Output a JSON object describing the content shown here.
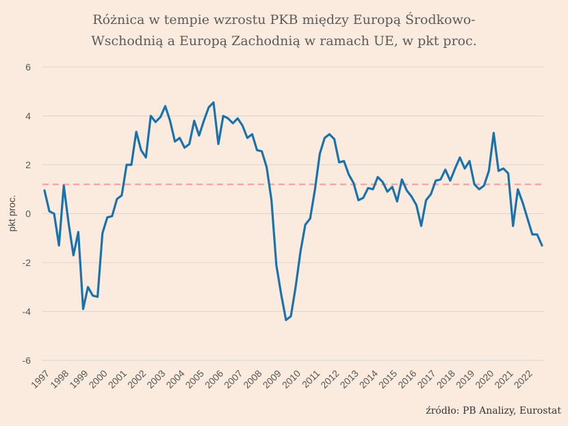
{
  "chart_data": {
    "type": "line",
    "title_line1": "Różnica w tempie wzrostu PKB między Europą Środkowo-",
    "title_line2": "Wschodnią a Europą Zachodnią w ramach UE, w pkt proc.",
    "ylabel": "pkt proc.",
    "source": "źródło: PB Analizy, Eurostat",
    "ylim": [
      -6,
      6
    ],
    "y_ticks": [
      "6",
      "4",
      "2",
      "0",
      "-2",
      "-4",
      "-6"
    ],
    "x_ticks": [
      "1997",
      "1998",
      "1999",
      "2000",
      "2001",
      "2002",
      "2003",
      "2004",
      "2005",
      "2006",
      "2007",
      "2008",
      "2009",
      "2010",
      "2011",
      "2012",
      "2013",
      "2014",
      "2015",
      "2016",
      "2017",
      "2018",
      "2019",
      "2020",
      "2021",
      "2022"
    ],
    "reference_line": 1.2,
    "grid": true,
    "colors": {
      "line": "#1a72ad",
      "reference": "#f2a0a0",
      "grid": "#d8d4d0"
    },
    "series": [
      {
        "start": "1997-Q1",
        "values": [
          0.95,
          0.1,
          0.0,
          -1.3,
          1.15,
          -0.4,
          -1.7,
          -0.75,
          -3.9,
          -3.0,
          -3.35,
          -3.4,
          -0.8,
          -0.15,
          -0.1,
          0.6,
          0.75,
          2.0,
          2.0,
          3.35,
          2.6,
          2.3,
          4.0,
          3.75,
          3.95,
          4.4,
          3.8,
          2.95,
          3.1,
          2.7,
          2.85,
          3.8,
          3.2,
          3.8,
          4.35,
          4.55,
          2.85,
          4.0,
          3.9,
          3.7,
          3.9,
          3.6,
          3.1,
          3.25,
          2.6,
          2.55,
          1.9,
          0.55,
          -2.1,
          -3.3,
          -4.35,
          -4.2,
          -3.0,
          -1.55,
          -0.45,
          -0.2,
          1.0,
          2.45,
          3.1,
          3.25,
          3.05,
          2.1,
          2.15,
          1.6,
          1.25,
          0.55,
          0.65,
          1.05,
          1.0,
          1.5,
          1.3,
          0.9,
          1.1,
          0.5,
          1.4,
          0.95,
          0.7,
          0.35,
          -0.5,
          0.55,
          0.8,
          1.35,
          1.4,
          1.8,
          1.35,
          1.85,
          2.3,
          1.85,
          2.15,
          1.2,
          1.0,
          1.15,
          1.75,
          3.3,
          1.75,
          1.85,
          1.65,
          -0.5,
          1.0,
          0.45,
          -0.2,
          -0.85,
          -0.85,
          -1.3
        ]
      }
    ]
  }
}
